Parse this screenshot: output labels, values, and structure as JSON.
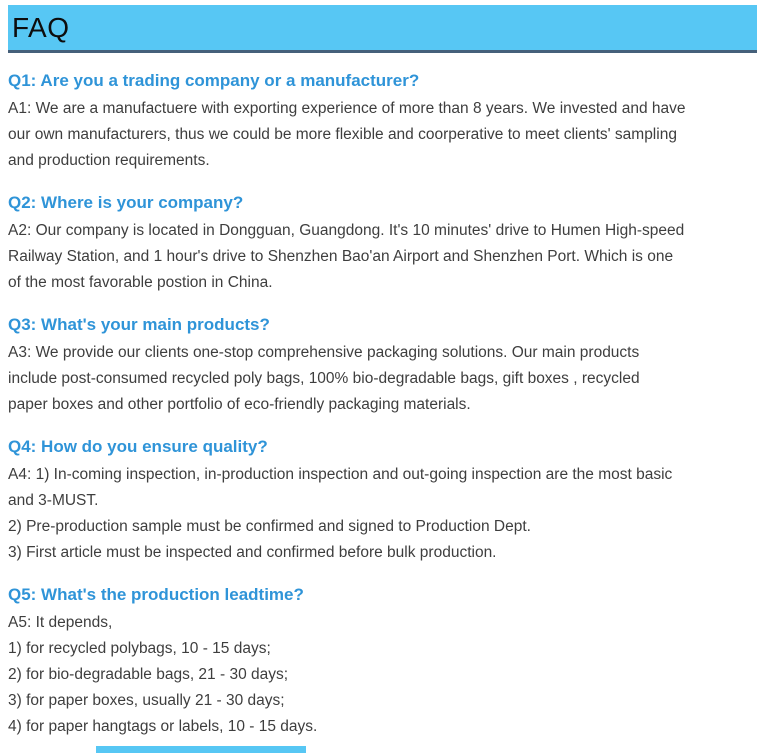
{
  "header": {
    "title": "FAQ"
  },
  "colors": {
    "header_bg": "#57C7F4",
    "header_border": "#45607A",
    "header_text": "#0d0d0d",
    "question_text": "#2F94D8",
    "answer_text": "#3E3E3E",
    "page_bg": "#ffffff"
  },
  "faq": {
    "items": [
      {
        "question": "Q1: Are you a trading company or a manufacturer?",
        "answer_lines": [
          "A1: We are a manufactuere with exporting experience of more than 8 years. We invested and have",
          "our own manufacturers, thus we could be more flexible and coorperative to meet clients' sampling",
          "and production requirements."
        ]
      },
      {
        "question": "Q2: Where is your company?",
        "answer_lines": [
          "A2: Our company is located in Dongguan, Guangdong. It's 10 minutes' drive to Humen High-speed",
          "Railway Station, and 1 hour's drive to Shenzhen Bao'an Airport and Shenzhen Port. Which is one",
          "of the most favorable postion in China."
        ]
      },
      {
        "question": "Q3: What's your main products?",
        "answer_lines": [
          "A3: We provide our clients one-stop comprehensive packaging solutions. Our main products",
          "include post-consumed recycled poly bags, 100% bio-degradable bags, gift boxes , recycled",
          "paper boxes and other portfolio of eco-friendly packaging materials."
        ]
      },
      {
        "question": "Q4: How do you ensure quality?",
        "answer_lines": [
          "A4: 1) In-coming inspection, in-production inspection and out-going inspection are the most basic",
          "and 3-MUST.",
          "2) Pre-production sample must be confirmed and signed to Production Dept.",
          "3) First article must be inspected and confirmed before bulk production."
        ]
      },
      {
        "question": "Q5: What's the production leadtime?",
        "answer_lines": [
          "A5: It depends,",
          "1) for recycled polybags, 10 - 15 days;",
          "2) for bio-degradable bags, 21 - 30 days;",
          "3) for paper boxes, usually 21 - 30 days;",
          "4) for paper hangtags or labels, 10 - 15 days."
        ]
      }
    ]
  }
}
